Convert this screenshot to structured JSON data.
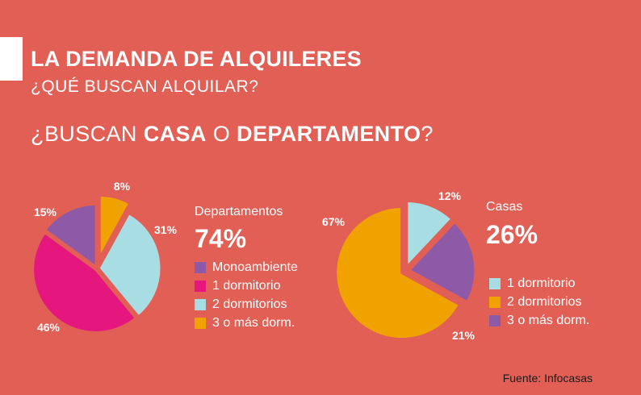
{
  "header": {
    "title": "LA DEMANDA DE ALQUILERES",
    "subtitle": "¿QUÉ BUSCAN ALQUILAR?",
    "question_pre": "¿BUSCAN ",
    "question_casa": "CASA",
    "question_mid": " O ",
    "question_depto": "DEPARTAMENTO",
    "question_post": "?"
  },
  "source": "Fuente: Infocasas",
  "colors": {
    "background": "#e15f55",
    "purple": "#8e5aa8",
    "magenta": "#e5177f",
    "light_blue": "#a8dde3",
    "orange": "#f0a300"
  },
  "chart_data": [
    {
      "type": "pie",
      "title": "Departamentos",
      "total_label": "74%",
      "categories": [
        "Monoambiente",
        "1 dormitorio",
        "2 dormitorios",
        "3 o más dorm."
      ],
      "values": [
        15,
        46,
        31,
        8
      ],
      "value_labels": [
        "15%",
        "46%",
        "31%",
        "8%"
      ],
      "colors": [
        "#8e5aa8",
        "#e5177f",
        "#a8dde3",
        "#f0a300"
      ],
      "legend_placement": "right"
    },
    {
      "type": "pie",
      "title": "Casas",
      "total_label": "26%",
      "categories": [
        "1 dormitorio",
        "2 dormitorios",
        "3 o más dorm."
      ],
      "values": [
        12,
        67,
        21
      ],
      "value_labels": [
        "12%",
        "67%",
        "21%"
      ],
      "colors": [
        "#a8dde3",
        "#f0a300",
        "#8e5aa8"
      ],
      "legend_placement": "right"
    }
  ]
}
